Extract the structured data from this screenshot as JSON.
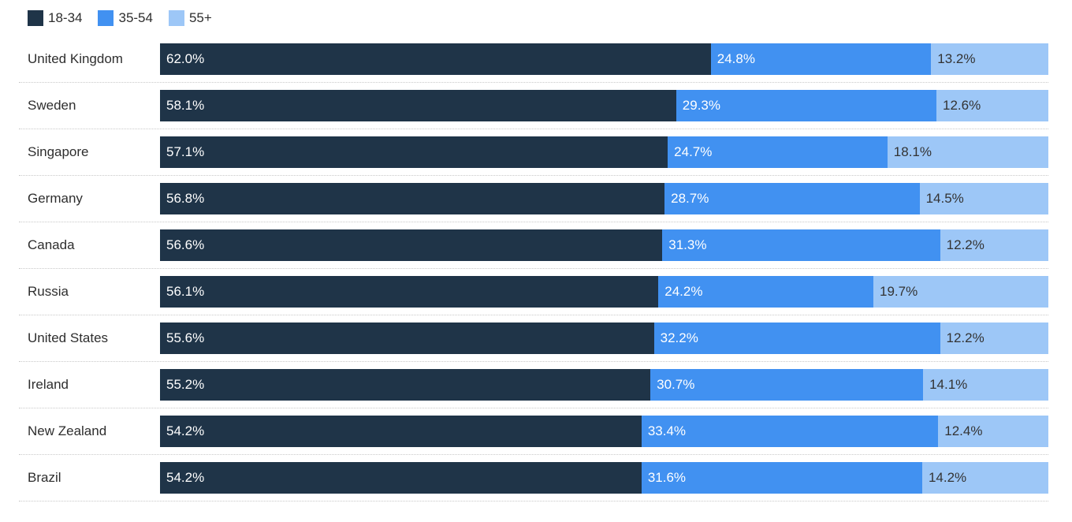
{
  "chart_data": {
    "type": "bar",
    "orientation": "horizontal",
    "stacked": true,
    "title": "",
    "xlabel": "",
    "ylabel": "",
    "xlim": [
      0,
      100
    ],
    "grid": false,
    "legend_position": "top-left",
    "value_suffix": "%",
    "categories": [
      "United Kingdom",
      "Sweden",
      "Singapore",
      "Germany",
      "Canada",
      "Russia",
      "United States",
      "Ireland",
      "New Zealand",
      "Brazil"
    ],
    "series": [
      {
        "name": "18-34",
        "color": "#1f3448",
        "label_color": "#ffffff",
        "values": [
          62.0,
          58.1,
          57.1,
          56.8,
          56.6,
          56.1,
          55.6,
          55.2,
          54.2,
          54.2
        ]
      },
      {
        "name": "35-54",
        "color": "#4191f1",
        "label_color": "#ffffff",
        "values": [
          24.8,
          29.3,
          24.7,
          28.7,
          31.3,
          24.2,
          32.2,
          30.7,
          33.4,
          31.6
        ]
      },
      {
        "name": "55+",
        "color": "#9dc7f7",
        "label_color": "#333333",
        "values": [
          13.2,
          12.6,
          18.1,
          14.5,
          12.2,
          19.7,
          12.2,
          14.1,
          12.4,
          14.2
        ]
      }
    ]
  },
  "legend": {
    "items": [
      {
        "label": "18-34",
        "color": "#1f3448"
      },
      {
        "label": "35-54",
        "color": "#4191f1"
      },
      {
        "label": "55+",
        "color": "#9dc7f7"
      }
    ]
  },
  "colors": {
    "background": "#ffffff",
    "row_separator": "#c9c9c9",
    "label_text": "#2e2e2e"
  }
}
